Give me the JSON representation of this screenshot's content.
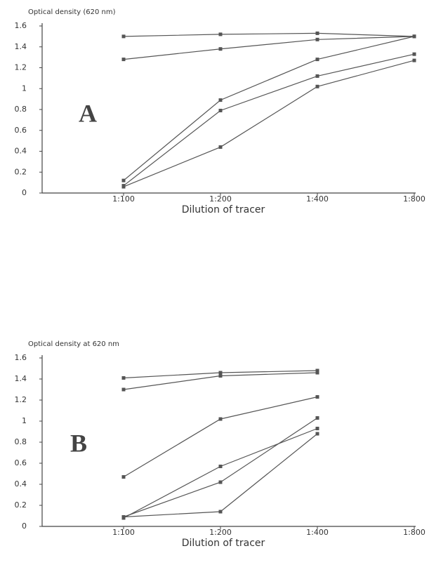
{
  "chart_data": [
    {
      "type": "line",
      "title": "Optical density (620 nm)",
      "annotation": "A",
      "x_label": "Dilution of tracer",
      "categories": [
        "1:100",
        "1:200",
        "1:400",
        "1:800"
      ],
      "ylim": [
        0,
        1.6
      ],
      "yticks": [
        0,
        0.2,
        0.4,
        0.6,
        0.8,
        1,
        1.2,
        1.4,
        1.6
      ],
      "color": "#555555",
      "series": [
        {
          "values": [
            1.5,
            1.52,
            1.53,
            1.5
          ]
        },
        {
          "values": [
            1.28,
            1.38,
            1.47,
            1.5
          ]
        },
        {
          "values": [
            0.12,
            0.89,
            1.28,
            1.5
          ]
        },
        {
          "values": [
            0.07,
            0.79,
            1.12,
            1.33
          ]
        },
        {
          "values": [
            0.06,
            0.44,
            1.02,
            1.27
          ]
        }
      ]
    },
    {
      "type": "line",
      "title": "Optical density at 620 nm",
      "annotation": "B",
      "x_label": "Dilution of tracer",
      "categories": [
        "1:100",
        "1:200",
        "1:400",
        "1:800"
      ],
      "ylim": [
        0,
        1.6
      ],
      "yticks": [
        0,
        0.2,
        0.4,
        0.6,
        0.8,
        1,
        1.2,
        1.4,
        1.6
      ],
      "color": "#555555",
      "series": [
        {
          "values": [
            1.41,
            1.46,
            1.48,
            null
          ]
        },
        {
          "values": [
            1.3,
            1.43,
            1.46,
            null
          ]
        },
        {
          "values": [
            0.47,
            1.02,
            1.23,
            null
          ]
        },
        {
          "values": [
            0.08,
            0.57,
            0.93,
            null
          ]
        },
        {
          "values": [
            0.09,
            0.42,
            1.03,
            null
          ]
        },
        {
          "values": [
            0.09,
            0.14,
            0.88,
            null
          ]
        }
      ]
    }
  ]
}
